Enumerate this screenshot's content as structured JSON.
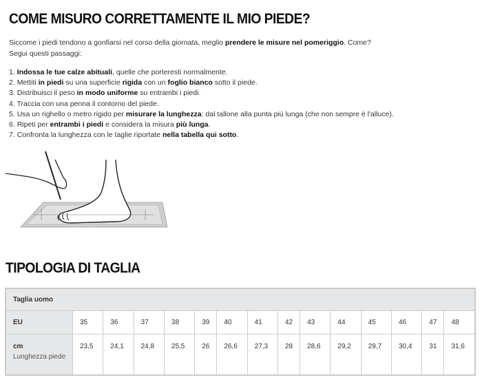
{
  "measure": {
    "title": "COME MISURO CORRETTAMENTE IL MIO PIEDE?",
    "intro": {
      "text1": "Siccome i piedi tendono a gonfiarsi nel corso della giornata, meglio ",
      "bold1": "prendere le misure nel pomeriggio",
      "text2": ". Come? Segui questi passaggi:"
    },
    "steps": [
      {
        "n": "1. ",
        "parts": [
          {
            "b": "Indossa le tue calze abituali"
          },
          {
            "t": ", quelle che porteresti normalmente."
          }
        ]
      },
      {
        "n": "2. ",
        "parts": [
          {
            "t": "Mettiti "
          },
          {
            "b": "in piedi"
          },
          {
            "t": " su una superficie "
          },
          {
            "b": "rigida"
          },
          {
            "t": " con un "
          },
          {
            "b": "foglio bianco"
          },
          {
            "t": " sotto il piede."
          }
        ]
      },
      {
        "n": "3. ",
        "parts": [
          {
            "t": "Distribuisci il peso "
          },
          {
            "b": "in modo uniforme"
          },
          {
            "t": " su entrambi i piedi."
          }
        ]
      },
      {
        "n": "4. ",
        "parts": [
          {
            "t": "Traccia con una penna il contorno del piede."
          }
        ]
      },
      {
        "n": "5. ",
        "parts": [
          {
            "t": "Usa un righello o metro rigido per "
          },
          {
            "b": "misurare la lunghezza"
          },
          {
            "t": ": dal tallone alla punta più lunga (che non sempre è l'alluce)."
          }
        ]
      },
      {
        "n": "6. ",
        "parts": [
          {
            "t": "Ripeti per "
          },
          {
            "b": "entrambi i piedi"
          },
          {
            "t": " e considera la misura "
          },
          {
            "b": "più lunga"
          },
          {
            "t": "."
          }
        ]
      },
      {
        "n": "7. ",
        "parts": [
          {
            "t": "Confronta la lunghezza con le taglie riportate "
          },
          {
            "b": "nella tabella qui sotto"
          },
          {
            "t": "."
          }
        ]
      }
    ]
  },
  "sizes": {
    "title": "TIPOLOGIA DI TAGLIA",
    "header": "Taglia uomo",
    "eu_label": "EU",
    "cm_label": "cm",
    "cm_sublabel": "Lunghezza piede",
    "eu": [
      "35",
      "36",
      "37",
      "38",
      "39",
      "40",
      "41",
      "42",
      "43",
      "44",
      "45",
      "46",
      "47",
      "48"
    ],
    "cm": [
      "23,5",
      "24,1",
      "24,8",
      "25,5",
      "26",
      "26,6",
      "27,3",
      "28",
      "28,6",
      "29,2",
      "29,7",
      "30,4",
      "31",
      "31,6"
    ]
  }
}
